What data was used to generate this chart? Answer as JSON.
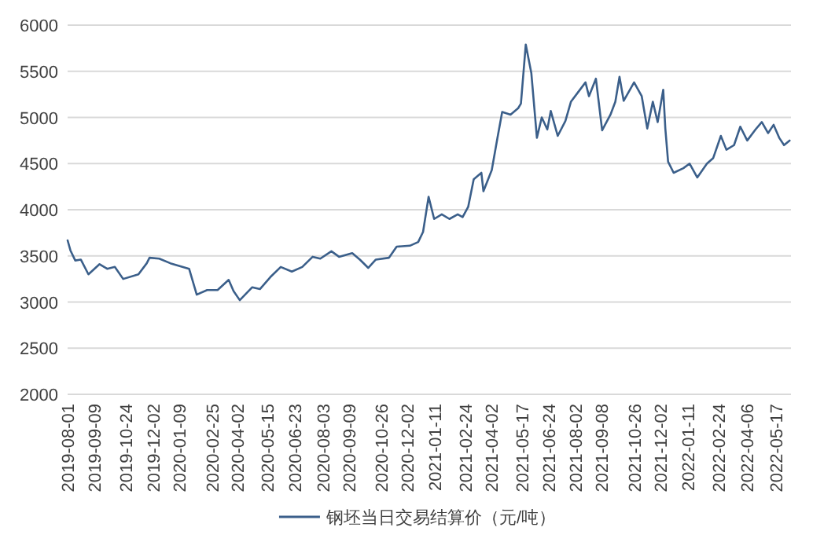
{
  "chart_data": {
    "type": "line",
    "x": [
      "2019-08-01",
      "2019-08-05",
      "2019-08-12",
      "2019-08-20",
      "2019-08-31",
      "2019-09-16",
      "2019-09-27",
      "2019-10-08",
      "2019-10-20",
      "2019-11-11",
      "2019-11-23",
      "2019-11-27",
      "2019-12-11",
      "2019-12-27",
      "2020-01-23",
      "2020-02-03",
      "2020-02-18",
      "2020-03-04",
      "2020-03-20",
      "2020-03-27",
      "2020-04-05",
      "2020-04-23",
      "2020-05-04",
      "2020-05-19",
      "2020-06-03",
      "2020-06-19",
      "2020-07-04",
      "2020-07-19",
      "2020-07-30",
      "2020-08-15",
      "2020-08-26",
      "2020-09-14",
      "2020-09-25",
      "2020-10-07",
      "2020-10-18",
      "2020-11-06",
      "2020-11-17",
      "2020-12-06",
      "2020-12-18",
      "2020-12-25",
      "2021-01-02",
      "2021-01-10",
      "2021-01-21",
      "2021-02-01",
      "2021-02-13",
      "2021-02-20",
      "2021-02-28",
      "2021-03-08",
      "2021-03-19",
      "2021-03-22",
      "2021-04-03",
      "2021-04-11",
      "2021-04-18",
      "2021-04-30",
      "2021-05-11",
      "2021-05-15",
      "2021-05-22",
      "2021-05-30",
      "2021-06-07",
      "2021-06-14",
      "2021-06-22",
      "2021-06-27",
      "2021-07-07",
      "2021-07-18",
      "2021-07-26",
      "2021-08-06",
      "2021-08-16",
      "2021-08-21",
      "2021-08-31",
      "2021-09-09",
      "2021-09-21",
      "2021-09-28",
      "2021-10-04",
      "2021-10-10",
      "2021-10-25",
      "2021-11-05",
      "2021-11-13",
      "2021-11-21",
      "2021-11-28",
      "2021-12-06",
      "2021-12-09",
      "2021-12-13",
      "2021-12-21",
      "2022-01-04",
      "2022-01-13",
      "2022-01-24",
      "2022-02-07",
      "2022-02-16",
      "2022-02-27",
      "2022-03-07",
      "2022-03-18",
      "2022-03-27",
      "2022-04-06",
      "2022-04-18",
      "2022-04-27",
      "2022-05-06",
      "2022-05-14",
      "2022-05-22",
      "2022-05-29",
      "2022-06-06"
    ],
    "series": [
      {
        "name": "钢坯当日交易结算价（元/吨）",
        "color": "#3b5f8a",
        "values": [
          3668,
          3560,
          3450,
          3460,
          3300,
          3410,
          3360,
          3380,
          3250,
          3300,
          3420,
          3480,
          3470,
          3420,
          3360,
          3080,
          3130,
          3130,
          3240,
          3120,
          3020,
          3160,
          3140,
          3270,
          3380,
          3330,
          3380,
          3490,
          3470,
          3550,
          3490,
          3530,
          3460,
          3370,
          3460,
          3480,
          3600,
          3610,
          3650,
          3760,
          4140,
          3900,
          3950,
          3900,
          3950,
          3920,
          4030,
          4330,
          4400,
          4200,
          4430,
          4770,
          5060,
          5030,
          5100,
          5150,
          5790,
          5480,
          4780,
          5000,
          4870,
          5070,
          4800,
          4960,
          5170,
          5280,
          5380,
          5230,
          5420,
          4860,
          5030,
          5170,
          5440,
          5180,
          5380,
          5230,
          4880,
          5170,
          4950,
          5300,
          4880,
          4520,
          4400,
          4450,
          4500,
          4350,
          4500,
          4560,
          4800,
          4650,
          4700,
          4900,
          4750,
          4870,
          4950,
          4830,
          4920,
          4780,
          4700,
          4750
        ]
      }
    ],
    "xlim": [
      "2019-08-01",
      "2022-06-08"
    ],
    "xticks": [
      "2019-08-01",
      "2019-09-09",
      "2019-10-24",
      "2019-12-02",
      "2020-01-09",
      "2020-02-25",
      "2020-04-02",
      "2020-05-15",
      "2020-06-23",
      "2020-08-03",
      "2020-09-09",
      "2020-10-26",
      "2020-12-02",
      "2021-01-11",
      "2021-02-24",
      "2021-04-02",
      "2021-05-17",
      "2021-06-24",
      "2021-08-02",
      "2021-09-08",
      "2021-10-26",
      "2021-12-02",
      "2022-01-11",
      "2022-02-24",
      "2022-04-06",
      "2022-05-17"
    ],
    "ylim": [
      2000,
      6000
    ],
    "yticks": [
      2000,
      2500,
      3000,
      3500,
      4000,
      4500,
      5000,
      5500,
      6000
    ],
    "grid": "y",
    "legend": "bottom"
  }
}
